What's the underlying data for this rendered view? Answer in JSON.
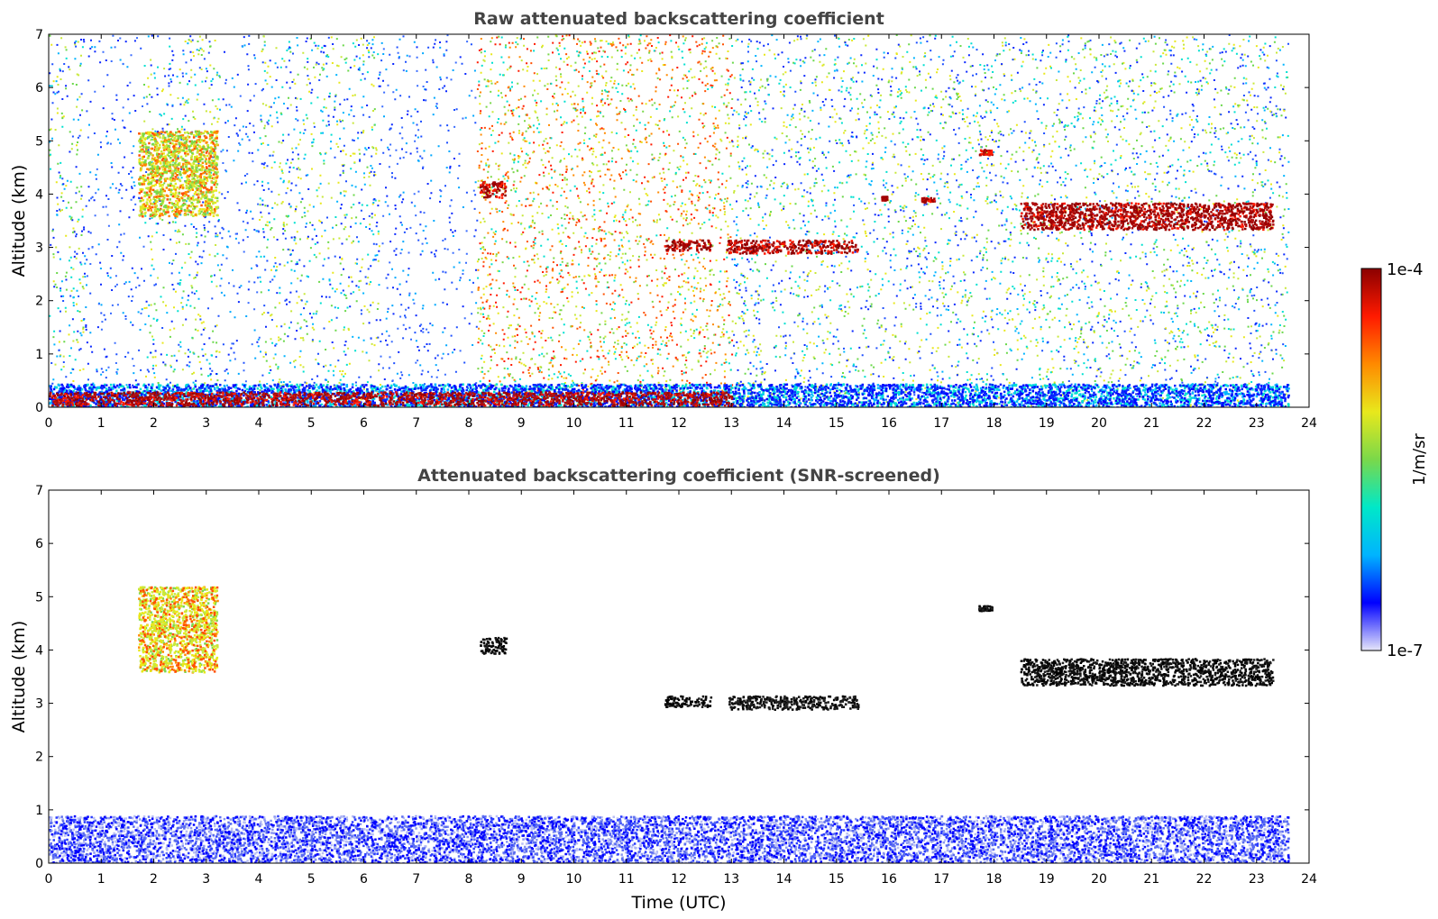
{
  "chart_data": [
    {
      "type": "heatmap",
      "title": "Raw attenuated backscattering coefficient",
      "xlabel": "",
      "ylabel": "Altitude (km)",
      "xlim": [
        0,
        24
      ],
      "ylim": [
        0,
        7
      ],
      "xticks": [
        "0",
        "1",
        "2",
        "3",
        "4",
        "5",
        "6",
        "7",
        "8",
        "9",
        "10",
        "11",
        "12",
        "13",
        "14",
        "15",
        "16",
        "17",
        "18",
        "19",
        "20",
        "21",
        "22",
        "23",
        "24"
      ],
      "yticks": [
        "0",
        "1",
        "2",
        "3",
        "4",
        "5",
        "6",
        "7"
      ],
      "data_end_hour": 23.6,
      "background_noise": [
        {
          "t0": 0.0,
          "t1": 0.65,
          "level": "medium"
        },
        {
          "t0": 0.65,
          "t1": 1.8,
          "level": "low"
        },
        {
          "t0": 1.8,
          "t1": 3.25,
          "level": "medium"
        },
        {
          "t0": 3.25,
          "t1": 4.0,
          "level": "low"
        },
        {
          "t0": 4.0,
          "t1": 6.3,
          "level": "medium"
        },
        {
          "t0": 6.3,
          "t1": 8.15,
          "level": "low"
        },
        {
          "t0": 8.15,
          "t1": 13.0,
          "level": "high"
        },
        {
          "t0": 13.0,
          "t1": 23.6,
          "level": "medium"
        }
      ],
      "features": [
        {
          "name": "ice cloud",
          "t0": 1.7,
          "t1": 3.2,
          "alt_bottom": 3.6,
          "alt_top": 5.2,
          "intensity": "mid-high"
        },
        {
          "name": "cloud",
          "t0": 8.2,
          "t1": 8.7,
          "alt_bottom": 3.95,
          "alt_top": 4.25,
          "intensity": "max"
        },
        {
          "name": "cloud",
          "t0": 11.7,
          "t1": 12.6,
          "alt_bottom": 2.95,
          "alt_top": 3.15,
          "intensity": "max"
        },
        {
          "name": "cloud",
          "t0": 12.9,
          "t1": 15.4,
          "alt_bottom": 2.9,
          "alt_top": 3.15,
          "intensity": "max"
        },
        {
          "name": "cloud",
          "t0": 15.85,
          "t1": 15.95,
          "alt_bottom": 3.9,
          "alt_top": 3.97,
          "intensity": "max"
        },
        {
          "name": "cloud",
          "t0": 16.6,
          "t1": 16.85,
          "alt_bottom": 3.85,
          "alt_top": 3.95,
          "intensity": "max"
        },
        {
          "name": "cloud",
          "t0": 17.7,
          "t1": 17.95,
          "alt_bottom": 4.75,
          "alt_top": 4.85,
          "intensity": "max"
        },
        {
          "name": "cloud layer",
          "t0": 18.5,
          "t1": 23.3,
          "alt_bottom": 3.35,
          "alt_top": 3.85,
          "intensity": "max"
        },
        {
          "name": "aerosol boundary layer",
          "t0": 0.0,
          "t1": 23.6,
          "alt_bottom": 0.0,
          "alt_top": 0.45,
          "intensity": "low-mid"
        },
        {
          "name": "low cloud base",
          "t0": 0.0,
          "t1": 13.0,
          "alt_bottom": 0.05,
          "alt_top": 0.3,
          "intensity": "max"
        }
      ]
    },
    {
      "type": "heatmap",
      "title": "Attenuated backscattering coefficient (SNR-screened)",
      "xlabel": "Time (UTC)",
      "ylabel": "Altitude (km)",
      "xlim": [
        0,
        24
      ],
      "ylim": [
        0,
        7
      ],
      "xticks": [
        "0",
        "1",
        "2",
        "3",
        "4",
        "5",
        "6",
        "7",
        "8",
        "9",
        "10",
        "11",
        "12",
        "13",
        "14",
        "15",
        "16",
        "17",
        "18",
        "19",
        "20",
        "21",
        "22",
        "23",
        "24"
      ],
      "yticks": [
        "0",
        "1",
        "2",
        "3",
        "4",
        "5",
        "6",
        "7"
      ],
      "data_end_hour": 23.6,
      "features": [
        {
          "name": "ice cloud",
          "t0": 1.7,
          "t1": 3.2,
          "alt_bottom": 3.6,
          "alt_top": 5.2,
          "intensity": "mid-high"
        },
        {
          "name": "cloud",
          "t0": 8.2,
          "t1": 8.7,
          "alt_bottom": 3.95,
          "alt_top": 4.25,
          "intensity": "saturated"
        },
        {
          "name": "cloud",
          "t0": 11.7,
          "t1": 12.6,
          "alt_bottom": 2.95,
          "alt_top": 3.15,
          "intensity": "saturated"
        },
        {
          "name": "cloud",
          "t0": 12.9,
          "t1": 15.4,
          "alt_bottom": 2.9,
          "alt_top": 3.15,
          "intensity": "saturated"
        },
        {
          "name": "cloud",
          "t0": 17.7,
          "t1": 17.95,
          "alt_bottom": 4.75,
          "alt_top": 4.85,
          "intensity": "saturated"
        },
        {
          "name": "cloud layer",
          "t0": 18.5,
          "t1": 23.3,
          "alt_bottom": 3.35,
          "alt_top": 3.85,
          "intensity": "saturated"
        },
        {
          "name": "aerosol boundary layer",
          "t0": 0.0,
          "t1": 23.6,
          "alt_bottom": 0.0,
          "alt_top": 0.9,
          "intensity": "low"
        }
      ]
    }
  ],
  "colorbar": {
    "label": "1/m/sr",
    "max_label": "1e-4",
    "min_label": "1e-7",
    "colors": [
      "#e6e6fa",
      "#0000ff",
      "#00b4ff",
      "#00e8c8",
      "#7ad84a",
      "#e8e81c",
      "#ff8a00",
      "#ff1a00",
      "#8b0000"
    ]
  }
}
